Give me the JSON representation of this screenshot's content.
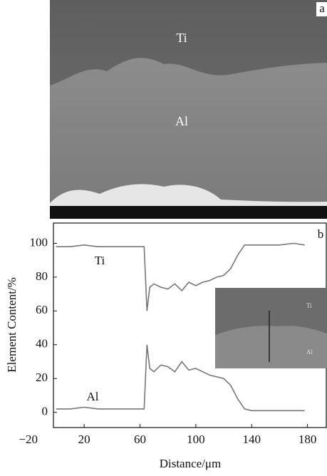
{
  "panel_a": {
    "label": "a",
    "ti_label": "Ti",
    "al_label": "Al"
  },
  "chart_data": {
    "type": "line",
    "panel_label": "b",
    "xlabel": "Distance/μm",
    "ylabel": "Element Content/%",
    "x": [
      0,
      10,
      20,
      30,
      40,
      50,
      60,
      63,
      65,
      67,
      70,
      75,
      80,
      85,
      90,
      95,
      100,
      105,
      110,
      115,
      120,
      125,
      130,
      135,
      140,
      150,
      160,
      170,
      178
    ],
    "series": [
      {
        "name": "Ti",
        "color": "#777777",
        "values": [
          98,
          98,
          99,
          98,
          98,
          98,
          98,
          98,
          60,
          74,
          76,
          74,
          73,
          76,
          72,
          77,
          75,
          77,
          78,
          80,
          81,
          85,
          93,
          99,
          99,
          99,
          99,
          100,
          99
        ]
      },
      {
        "name": "Al",
        "color": "#777777",
        "values": [
          2,
          2,
          3,
          2,
          2,
          2,
          2,
          2,
          40,
          26,
          24,
          28,
          27,
          24,
          30,
          25,
          26,
          24,
          22,
          21,
          20,
          16,
          8,
          2,
          1,
          1,
          1,
          1,
          1
        ]
      }
    ],
    "xlim": [
      -2,
      194
    ],
    "xticks": [
      {
        "value": -20,
        "label": "−20"
      },
      20,
      60,
      100,
      140,
      180
    ],
    "ylim": [
      -9,
      112
    ],
    "yticks": [
      0,
      20,
      40,
      60,
      80,
      100
    ],
    "inset": {
      "ti_label": "Ti",
      "al_label": "Al"
    }
  }
}
